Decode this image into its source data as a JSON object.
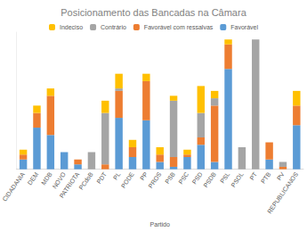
{
  "chart_data": {
    "type": "bar",
    "title": "Posicionamento das Bancadas na Câmara",
    "x_label": "Partido",
    "stacked": true,
    "legend": "top",
    "tick_labels": "x",
    "categories": [
      "CIDADANIA",
      "DEM",
      "MDB",
      "NOVO",
      "PATRIOTA",
      "PCdoB",
      "PDT",
      "PL",
      "PODE",
      "PP",
      "PROS",
      "PSB",
      "PSC",
      "PSD",
      "PSDB",
      "PSL",
      "PSOL",
      "PT",
      "PTB",
      "PV",
      "REPUBLICANOS"
    ],
    "ylim": [
      0,
      56
    ],
    "legend_order": [
      "Indeciso",
      "Contrário",
      "Favorável com ressalvas",
      "Favorável"
    ],
    "series": [
      {
        "name": "Favorável",
        "color": "#5b9bd5",
        "values": [
          4,
          17,
          14,
          7,
          2,
          0,
          0,
          21,
          5,
          20,
          3,
          1,
          5,
          10,
          3,
          41,
          0,
          0,
          4,
          0,
          18
        ]
      },
      {
        "name": "Favorável com ressalvas",
        "color": "#ed7d31",
        "values": [
          2,
          6,
          16,
          0,
          2,
          0,
          2,
          11,
          4,
          16,
          3,
          4,
          1,
          3,
          23,
          10,
          0,
          0,
          7,
          1,
          8
        ]
      },
      {
        "name": "Contrário",
        "color": "#a5a5a5",
        "values": [
          0,
          0,
          0,
          0,
          0,
          7,
          21,
          1,
          0,
          0,
          0,
          23,
          0,
          10,
          3,
          0,
          9,
          53,
          0,
          2,
          0
        ]
      },
      {
        "name": "Indeciso",
        "color": "#ffc000",
        "values": [
          2,
          3,
          3,
          0,
          0,
          0,
          5,
          6,
          3,
          3,
          3,
          2,
          2,
          11,
          3,
          2,
          0,
          0,
          0,
          0,
          6
        ]
      }
    ]
  }
}
